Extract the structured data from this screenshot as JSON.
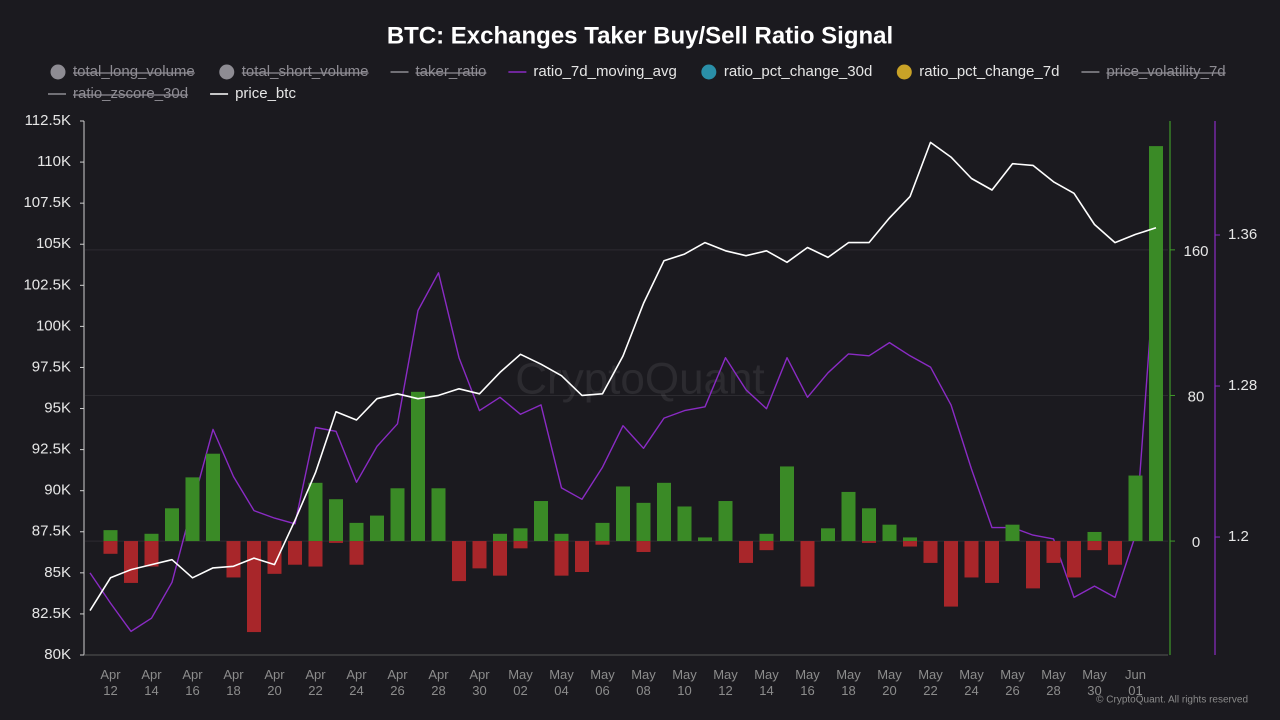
{
  "chart_data": {
    "type": "combo",
    "title": "BTC: Exchanges Taker Buy/Sell Ratio Signal",
    "watermark": "CryptoQuant",
    "copyright": "© CryptoQuant. All rights reserved",
    "categories": [
      null,
      "Apr 12",
      null,
      "Apr 14",
      null,
      "Apr 16",
      null,
      "Apr 18",
      null,
      "Apr 20",
      null,
      "Apr 22",
      null,
      "Apr 24",
      null,
      "Apr 26",
      null,
      "Apr 28",
      null,
      "Apr 30",
      null,
      "May 02",
      null,
      "May 04",
      null,
      "May 06",
      null,
      "May 08",
      null,
      "May 10",
      null,
      "May 12",
      null,
      "May 14",
      null,
      "May 16",
      null,
      "May 18",
      null,
      "May 20",
      null,
      "May 22",
      null,
      "May 24",
      null,
      "May 26",
      null,
      "May 28",
      null,
      "May 30",
      null,
      "Jun 01",
      null
    ],
    "ylim": [
      80000,
      112500
    ],
    "yticks": [
      {
        "value": 80000,
        "label": "80K"
      },
      {
        "value": 82500,
        "label": "82.5K"
      },
      {
        "value": 85000,
        "label": "85K"
      },
      {
        "value": 87500,
        "label": "87.5K"
      },
      {
        "value": 90000,
        "label": "90K"
      },
      {
        "value": 92500,
        "label": "92.5K"
      },
      {
        "value": 95000,
        "label": "95K"
      },
      {
        "value": 97500,
        "label": "97.5K"
      },
      {
        "value": 100000,
        "label": "100K"
      },
      {
        "value": 102500,
        "label": "102.5K"
      },
      {
        "value": 105000,
        "label": "105K"
      },
      {
        "value": 107500,
        "label": "107.5K"
      },
      {
        "value": 110000,
        "label": "110K"
      },
      {
        "value": 112500,
        "label": "112.5K"
      }
    ],
    "y2lim": [
      -62.6,
      230.8
    ],
    "y2ticks": [
      0,
      80,
      160
    ],
    "y2color": "#3f9a2a",
    "y3lim": [
      1.1375,
      1.4204
    ],
    "y3ticks": [
      1.2,
      1.28,
      1.36
    ],
    "y3color": "#8a2bc4",
    "grid": true,
    "positive_color": "#3a8a26",
    "negative_color": "#a8262a",
    "series": [
      {
        "name": "total_long_volume",
        "marker": "circle",
        "color": "#8e8c93",
        "hidden": true
      },
      {
        "name": "total_short_volume",
        "marker": "circle",
        "color": "#8e8c93",
        "hidden": true
      },
      {
        "name": "taker_ratio",
        "marker": "line",
        "color": "#8e8c93",
        "hidden": true
      },
      {
        "name": "ratio_7d_moving_avg",
        "marker": "line",
        "kind": "line",
        "axis": "y3",
        "color": "#8a2bc4",
        "values": [
          1.181,
          1.165,
          1.15,
          1.157,
          1.176,
          1.217,
          1.257,
          1.232,
          1.214,
          1.21,
          1.207,
          1.258,
          1.256,
          1.229,
          1.248,
          1.26,
          1.32,
          1.34,
          1.295,
          1.267,
          1.274,
          1.265,
          1.27,
          1.226,
          1.22,
          1.237,
          1.259,
          1.247,
          1.263,
          1.267,
          1.269,
          1.295,
          1.278,
          1.268,
          1.295,
          1.274,
          1.287,
          1.297,
          1.296,
          1.303,
          1.296,
          1.29,
          1.27,
          1.236,
          1.205,
          1.205,
          1.201,
          1.199,
          1.168,
          1.174,
          1.168,
          1.201,
          1.351
        ]
      },
      {
        "name": "ratio_pct_change_30d",
        "marker": "circle",
        "kind": "bar",
        "axis": "y2",
        "color": "#2a8fa8",
        "values": [
          null,
          6,
          null,
          4,
          18,
          35,
          48,
          null,
          null,
          null,
          null,
          32,
          23,
          10,
          14,
          29,
          82,
          29,
          null,
          null,
          4,
          7,
          22,
          4,
          null,
          10,
          30,
          21,
          32,
          19,
          2,
          22,
          null,
          4,
          41,
          null,
          7,
          27,
          18,
          9,
          2,
          null,
          null,
          null,
          null,
          9,
          null,
          null,
          null,
          5,
          null,
          36,
          217
        ]
      },
      {
        "name": "ratio_pct_change_7d",
        "marker": "circle",
        "kind": "bar",
        "axis": "y2",
        "color": "#c9a227",
        "values": [
          null,
          -7,
          -23,
          -14,
          null,
          null,
          null,
          -20,
          -50,
          -18,
          -13,
          -14,
          -1,
          -13,
          null,
          null,
          null,
          null,
          -22,
          -15,
          -19,
          -4,
          null,
          -19,
          -17,
          -2,
          null,
          -6,
          null,
          null,
          null,
          null,
          -12,
          -5,
          null,
          -25,
          null,
          null,
          -1,
          null,
          -3,
          -12,
          -36,
          -20,
          -23,
          null,
          -26,
          -12,
          -20,
          -5,
          -13,
          null,
          null
        ]
      },
      {
        "name": "price_volatility_7d",
        "marker": "line",
        "color": "#8e8c93",
        "hidden": true
      },
      {
        "name": "ratio_zscore_30d",
        "marker": "line",
        "color": "#8e8c93",
        "hidden": true
      },
      {
        "name": "price_btc",
        "marker": "line",
        "kind": "line",
        "axis": "y",
        "color": "#ffffff",
        "values": [
          82700,
          84700,
          85200,
          85500,
          85800,
          84700,
          85300,
          85400,
          85900,
          85500,
          88200,
          91100,
          94800,
          94300,
          95600,
          95900,
          95600,
          95800,
          96200,
          95900,
          97200,
          98300,
          97700,
          97000,
          95800,
          95900,
          98200,
          101400,
          104000,
          104400,
          105100,
          104600,
          104300,
          104600,
          103900,
          104800,
          104200,
          105100,
          105100,
          106600,
          107900,
          111200,
          110300,
          109000,
          108300,
          109900,
          109800,
          108800,
          108100,
          106200,
          105100,
          105600,
          106000
        ]
      }
    ]
  }
}
